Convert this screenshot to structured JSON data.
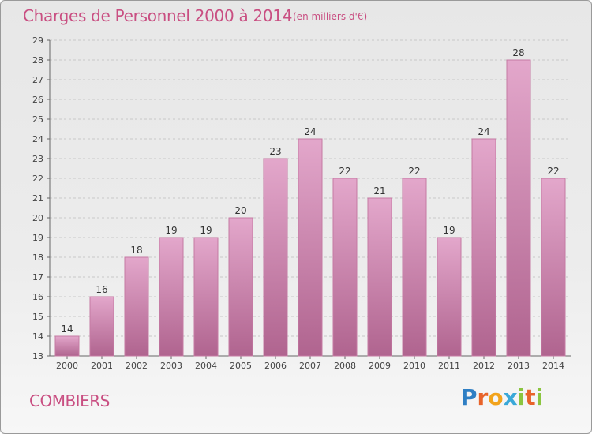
{
  "header": {
    "title": "Charges de Personnel 2000 à 2014",
    "unit": "(en milliers d'€)"
  },
  "footer": {
    "city": "COMBIERS",
    "logo": {
      "text": "Proxiti",
      "letters": [
        {
          "ch": "P",
          "color": "#2f7fc4"
        },
        {
          "ch": "r",
          "color": "#e8632a"
        },
        {
          "ch": "o",
          "color": "#f2a31b"
        },
        {
          "ch": "x",
          "color": "#3aa8d8"
        },
        {
          "ch": "i",
          "color": "#8bc53f"
        },
        {
          "ch": "t",
          "color": "#e8632a"
        },
        {
          "ch": "i",
          "color": "#8bc53f"
        }
      ]
    }
  },
  "chart_data": {
    "type": "bar",
    "title": "Charges de Personnel 2000 à 2014",
    "subtitle": "(en milliers d'€)",
    "categories": [
      "2000",
      "2001",
      "2002",
      "2003",
      "2004",
      "2005",
      "2006",
      "2007",
      "2008",
      "2009",
      "2010",
      "2011",
      "2012",
      "2013",
      "2014"
    ],
    "values": [
      14,
      16,
      18,
      19,
      19,
      20,
      23,
      24,
      22,
      21,
      22,
      19,
      24,
      28,
      22
    ],
    "ylim": [
      13,
      29
    ],
    "yticks": [
      13,
      14,
      15,
      16,
      17,
      18,
      19,
      20,
      21,
      22,
      23,
      24,
      25,
      26,
      27,
      28,
      29
    ],
    "grid": true,
    "colors": {
      "bar_top": "#e3a7cb",
      "bar_bottom": "#b0648f",
      "bar_edge": "#c57aa3",
      "grid": "#c8c8c8"
    }
  }
}
